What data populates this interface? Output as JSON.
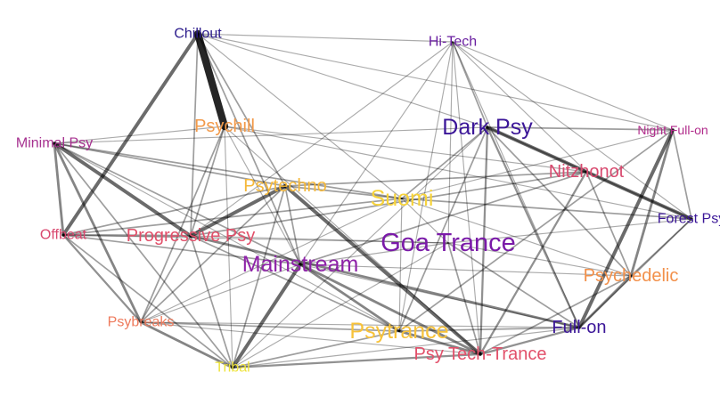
{
  "nodes": [
    {
      "id": "chillout",
      "label": "Chillout",
      "color": "#2b1b8c",
      "weight": 1
    },
    {
      "id": "hitech",
      "label": "Hi-Tech",
      "color": "#6a1fa0",
      "weight": 1
    },
    {
      "id": "psychill",
      "label": "Psychill",
      "color": "#f29a4a",
      "weight": 2
    },
    {
      "id": "darkpsy",
      "label": "Dark Psy",
      "color": "#3b1698",
      "weight": 3
    },
    {
      "id": "nightfullon",
      "label": "Night Full-on",
      "color": "#b02a8a",
      "weight": 0
    },
    {
      "id": "minimalpsy",
      "label": "Minimal Psy",
      "color": "#a6308f",
      "weight": 1
    },
    {
      "id": "nitzhonot",
      "label": "Nitzhonot",
      "color": "#d84a6f",
      "weight": 2
    },
    {
      "id": "psytechno",
      "label": "Psytechno",
      "color": "#f5b83a",
      "weight": 2
    },
    {
      "id": "suomi",
      "label": "Suomi",
      "color": "#f7d33a",
      "weight": 3
    },
    {
      "id": "forestpsy",
      "label": "Forest Psy",
      "color": "#3b1698",
      "weight": 1
    },
    {
      "id": "offbeat",
      "label": "Offbeat",
      "color": "#d9476e",
      "weight": 1
    },
    {
      "id": "progressivepsy",
      "label": "Progressive Psy",
      "color": "#e2506a",
      "weight": 2
    },
    {
      "id": "goatrance",
      "label": "Goa Trance",
      "color": "#7a1aa8",
      "weight": 4
    },
    {
      "id": "mainstream",
      "label": "Mainstream",
      "color": "#8e22a8",
      "weight": 3
    },
    {
      "id": "psychedelic",
      "label": "Psychedelic",
      "color": "#f2904a",
      "weight": 2
    },
    {
      "id": "psybreaks",
      "label": "Psybreaks",
      "color": "#ee7a5c",
      "weight": 1
    },
    {
      "id": "fullon",
      "label": "Full-on",
      "color": "#3b1698",
      "weight": 2
    },
    {
      "id": "psytrance",
      "label": "Psytrance",
      "color": "#f7c23a",
      "weight": 3
    },
    {
      "id": "psytechtrance",
      "label": "Psy Tech-Trance",
      "color": "#e2506a",
      "weight": 2
    },
    {
      "id": "tribal",
      "label": "Tribal",
      "color": "#eee33a",
      "weight": 1
    }
  ],
  "edges": [
    [
      "chillout",
      "psychill",
      7
    ],
    [
      "chillout",
      "offbeat",
      3
    ],
    [
      "chillout",
      "hitech",
      0.5
    ],
    [
      "chillout",
      "darkpsy",
      0.5
    ],
    [
      "chillout",
      "nightfullon",
      0.5
    ],
    [
      "chillout",
      "mainstream",
      1
    ],
    [
      "chillout",
      "progressivepsy",
      1
    ],
    [
      "chillout",
      "psytechno",
      1
    ],
    [
      "chillout",
      "suomi",
      0.5
    ],
    [
      "hitech",
      "darkpsy",
      1
    ],
    [
      "hitech",
      "forestpsy",
      0.5
    ],
    [
      "hitech",
      "nightfullon",
      0.5
    ],
    [
      "hitech",
      "mainstream",
      0.5
    ],
    [
      "hitech",
      "goatrance",
      0.5
    ],
    [
      "hitech",
      "nitzhonot",
      0.5
    ],
    [
      "hitech",
      "psytrance",
      0.5
    ],
    [
      "hitech",
      "fullon",
      0.5
    ],
    [
      "hitech",
      "psytechtrance",
      0.5
    ],
    [
      "hitech",
      "progressivepsy",
      0.5
    ],
    [
      "darkpsy",
      "forestpsy",
      3
    ],
    [
      "darkpsy",
      "nightfullon",
      1
    ],
    [
      "darkpsy",
      "nitzhonot",
      1
    ],
    [
      "darkpsy",
      "fullon",
      1.5
    ],
    [
      "darkpsy",
      "psychedelic",
      1
    ],
    [
      "darkpsy",
      "psytechtrance",
      1.5
    ],
    [
      "darkpsy",
      "psytrance",
      1
    ],
    [
      "darkpsy",
      "suomi",
      1
    ],
    [
      "darkpsy",
      "tribal",
      0.5
    ],
    [
      "darkpsy",
      "minimalpsy",
      0.5
    ],
    [
      "nightfullon",
      "fullon",
      3
    ],
    [
      "nightfullon",
      "psychedelic",
      2
    ],
    [
      "nightfullon",
      "forestpsy",
      1
    ],
    [
      "nightfullon",
      "suomi",
      0.5
    ],
    [
      "nightfullon",
      "psytrance",
      1
    ],
    [
      "nitzhonot",
      "forestpsy",
      1
    ],
    [
      "nitzhonot",
      "psytechtrance",
      1.5
    ],
    [
      "nitzhonot",
      "mainstream",
      1
    ],
    [
      "nitzhonot",
      "progressivepsy",
      1
    ],
    [
      "nitzhonot",
      "psytechno",
      1
    ],
    [
      "nitzhonot",
      "psychedelic",
      1
    ],
    [
      "minimalpsy",
      "progressivepsy",
      3
    ],
    [
      "minimalpsy",
      "offbeat",
      2
    ],
    [
      "minimalpsy",
      "psybreaks",
      2
    ],
    [
      "minimalpsy",
      "tribal",
      1
    ],
    [
      "minimalpsy",
      "mainstream",
      1
    ],
    [
      "minimalpsy",
      "psytechno",
      1
    ],
    [
      "minimalpsy",
      "suomi",
      1
    ],
    [
      "minimalpsy",
      "psychill",
      0.5
    ],
    [
      "minimalpsy",
      "psytrance",
      0.5
    ],
    [
      "offbeat",
      "progressivepsy",
      1.5
    ],
    [
      "offbeat",
      "psybreaks",
      1.5
    ],
    [
      "offbeat",
      "tribal",
      1
    ],
    [
      "offbeat",
      "suomi",
      1
    ],
    [
      "offbeat",
      "goatrance",
      0.5
    ],
    [
      "offbeat",
      "mainstream",
      1
    ],
    [
      "offbeat",
      "psytechno",
      1
    ],
    [
      "psychill",
      "psybreaks",
      1
    ],
    [
      "psychill",
      "progressivepsy",
      1
    ],
    [
      "psychill",
      "tribal",
      0.5
    ],
    [
      "psychill",
      "nitzhonot",
      0.5
    ],
    [
      "psychill",
      "mainstream",
      0.5
    ],
    [
      "psytechno",
      "progressivepsy",
      3
    ],
    [
      "psytechno",
      "psytechtrance",
      3
    ],
    [
      "psytechno",
      "mainstream",
      1
    ],
    [
      "psytechno",
      "psybreaks",
      1
    ],
    [
      "psytechno",
      "suomi",
      1
    ],
    [
      "psytechno",
      "tribal",
      1
    ],
    [
      "progressivepsy",
      "fullon",
      2
    ],
    [
      "progressivepsy",
      "psybreaks",
      1
    ],
    [
      "progressivepsy",
      "psytrance",
      1
    ],
    [
      "progressivepsy",
      "tribal",
      1
    ],
    [
      "progressivepsy",
      "goatrance",
      0.5
    ],
    [
      "mainstream",
      "tribal",
      3
    ],
    [
      "mainstream",
      "psytrance",
      2
    ],
    [
      "mainstream",
      "psytechtrance",
      2
    ],
    [
      "mainstream",
      "fullon",
      0.5
    ],
    [
      "mainstream",
      "psychedelic",
      0.5
    ],
    [
      "mainstream",
      "psybreaks",
      0.5
    ],
    [
      "psybreaks",
      "tribal",
      2
    ],
    [
      "psybreaks",
      "psytrance",
      1
    ],
    [
      "psybreaks",
      "psytechtrance",
      0.5
    ],
    [
      "psybreaks",
      "suomi",
      0.5
    ],
    [
      "psybreaks",
      "fullon",
      0.5
    ],
    [
      "tribal",
      "psytechtrance",
      1.5
    ],
    [
      "tribal",
      "psytrance",
      1
    ],
    [
      "tribal",
      "goatrance",
      0.5
    ],
    [
      "tribal",
      "fullon",
      0.5
    ],
    [
      "psytrance",
      "psytechtrance",
      2
    ],
    [
      "psytrance",
      "fullon",
      1
    ],
    [
      "psytrance",
      "suomi",
      0.5
    ],
    [
      "psytechtrance",
      "fullon",
      1.5
    ],
    [
      "psytechtrance",
      "psychedelic",
      1
    ],
    [
      "psytechtrance",
      "goatrance",
      1
    ],
    [
      "fullon",
      "psychedelic",
      2
    ],
    [
      "fullon",
      "goatrance",
      1
    ],
    [
      "fullon",
      "forestpsy",
      1
    ],
    [
      "psychedelic",
      "goatrance",
      0.5
    ],
    [
      "psychedelic",
      "forestpsy",
      1
    ],
    [
      "goatrance",
      "suomi",
      0.5
    ],
    [
      "goatrance",
      "forestpsy",
      0.5
    ],
    [
      "goatrance",
      "mainstream",
      0.5
    ],
    [
      "suomi",
      "forestpsy",
      1
    ],
    [
      "suomi",
      "psychedelic",
      0.5
    ],
    [
      "psychill",
      "forestpsy",
      0.5
    ],
    [
      "psychill",
      "psytechtrance",
      0.5
    ]
  ]
}
